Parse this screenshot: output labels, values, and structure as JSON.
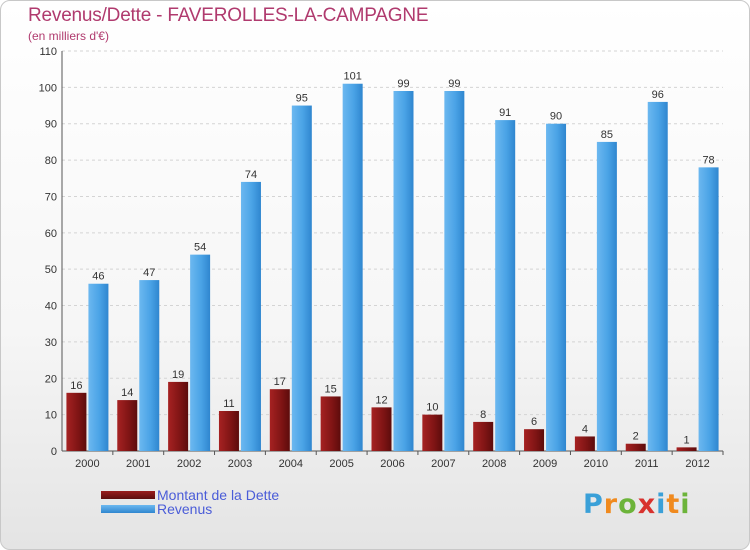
{
  "chart_data": {
    "type": "bar",
    "title": "Revenus/Dette - FAVEROLLES-LA-CAMPAGNE",
    "subtitle": "(en milliers d'€)",
    "categories": [
      "2000",
      "2001",
      "2002",
      "2003",
      "2004",
      "2005",
      "2006",
      "2007",
      "2008",
      "2009",
      "2010",
      "2011",
      "2012"
    ],
    "series": [
      {
        "name": "Montant de la Dette",
        "color": "#8b1a1a",
        "values": [
          16,
          14,
          19,
          11,
          17,
          15,
          12,
          10,
          8,
          6,
          4,
          2,
          1
        ]
      },
      {
        "name": "Revenus",
        "color": "#4aa3e6",
        "values": [
          46,
          47,
          54,
          74,
          95,
          101,
          99,
          99,
          91,
          90,
          85,
          96,
          78
        ]
      }
    ],
    "ylim": [
      0,
      110
    ],
    "yticks": [
      0,
      10,
      20,
      30,
      40,
      50,
      60,
      70,
      80,
      90,
      100,
      110
    ],
    "grid": true,
    "legend_position": "bottom-left"
  },
  "logo": {
    "text": "Proxiti",
    "letters": [
      "P",
      "r",
      "o",
      "x",
      "i",
      "t",
      "i"
    ]
  }
}
